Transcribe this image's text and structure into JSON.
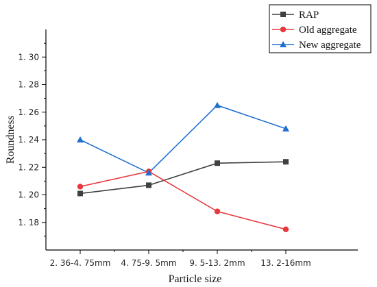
{
  "chart_data": {
    "type": "line",
    "title": "",
    "xlabel": "Particle size",
    "ylabel": "Roundness",
    "categories": [
      "2. 36-4. 75mm",
      "4. 75-9. 5mm",
      "9. 5-13. 2mm",
      "13. 2-16mm"
    ],
    "ylim": [
      1.16,
      1.32
    ],
    "yticks": [
      1.18,
      1.2,
      1.22,
      1.24,
      1.26,
      1.28,
      1.3
    ],
    "ytick_labels": [
      "1. 18",
      "1. 20",
      "1. 22",
      "1. 24",
      "1. 26",
      "1. 28",
      "1. 30"
    ],
    "grid": false,
    "legend_position": "top-right",
    "series": [
      {
        "name": "RAP",
        "color": "#404040",
        "marker": "square",
        "values": [
          1.201,
          1.207,
          1.223,
          1.224
        ]
      },
      {
        "name": "Old aggregate",
        "color": "#e8383d",
        "marker": "circle",
        "values": [
          1.206,
          1.217,
          1.188,
          1.175
        ]
      },
      {
        "name": "New aggregate",
        "color": "#1f6fd1",
        "marker": "triangle",
        "values": [
          1.24,
          1.216,
          1.265,
          1.248
        ]
      }
    ]
  }
}
